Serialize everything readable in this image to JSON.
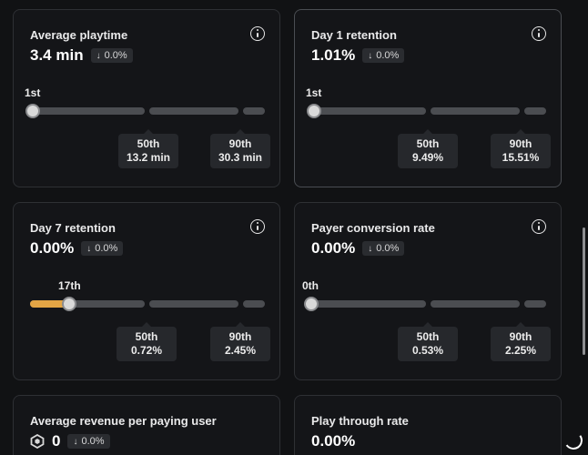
{
  "cards": [
    {
      "title": "Average playtime",
      "value": "3.4 min",
      "delta": "0.0%",
      "user_percentile_label": "1st",
      "user_percentile_fraction": 0.0,
      "p50_label": "50th",
      "p50_value": "13.2 min",
      "p90_label": "90th",
      "p90_value": "30.3 min"
    },
    {
      "title": "Day 1 retention",
      "value": "1.01%",
      "delta": "0.0%",
      "user_percentile_label": "1st",
      "user_percentile_fraction": 0.0,
      "p50_label": "50th",
      "p50_value": "9.49%",
      "p90_label": "90th",
      "p90_value": "15.51%"
    },
    {
      "title": "Day 7 retention",
      "value": "0.00%",
      "delta": "0.0%",
      "user_percentile_label": "17th",
      "user_percentile_fraction": 0.17,
      "p50_label": "50th",
      "p50_value": "0.72%",
      "p90_label": "90th",
      "p90_value": "2.45%"
    },
    {
      "title": "Payer conversion rate",
      "value": "0.00%",
      "delta": "0.0%",
      "user_percentile_label": "0th",
      "user_percentile_fraction": 0.0,
      "p50_label": "50th",
      "p50_value": "0.53%",
      "p90_label": "90th",
      "p90_value": "2.25%"
    },
    {
      "title": "Average revenue per paying user",
      "value": "0",
      "delta": "0.0%"
    },
    {
      "title": "Play through rate",
      "value": "0.00%"
    }
  ],
  "colors": {
    "accent_fill": "#e3a545",
    "track": "#4b4d51",
    "background": "#111214"
  },
  "icons": {
    "info": "info-circle-icon",
    "delta": "arrow-down-icon",
    "currency": "robux-icon",
    "loading": "loading-spinner-icon"
  }
}
